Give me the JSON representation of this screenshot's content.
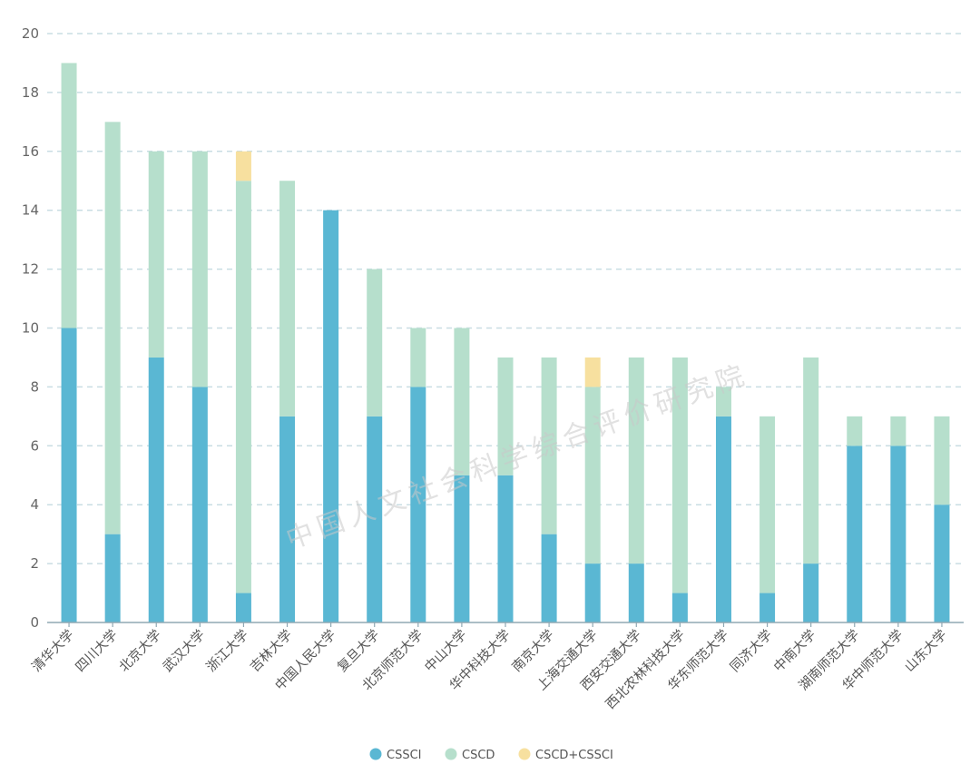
{
  "chart_data": {
    "type": "bar",
    "stacked": true,
    "categories": [
      "清华大学",
      "四川大学",
      "北京大学",
      "武汉大学",
      "浙江大学",
      "吉林大学",
      "中国人民大学",
      "复旦大学",
      "北京师范大学",
      "中山大学",
      "华中科技大学",
      "南京大学",
      "上海交通大学",
      "西安交通大学",
      "西北农林科技大学",
      "华东师范大学",
      "同济大学",
      "中南大学",
      "湖南师范大学",
      "华中师范大学",
      "山东大学"
    ],
    "series": [
      {
        "name": "CSSCI",
        "color": "#5ab7d3",
        "values": [
          10,
          3,
          9,
          8,
          1,
          7,
          14,
          7,
          8,
          5,
          5,
          3,
          2,
          2,
          1,
          7,
          1,
          2,
          6,
          6,
          4
        ]
      },
      {
        "name": "CSCD",
        "color": "#b6dfcc",
        "values": [
          9,
          14,
          7,
          8,
          14,
          8,
          0,
          5,
          2,
          5,
          4,
          6,
          6,
          7,
          8,
          1,
          6,
          7,
          1,
          1,
          3
        ]
      },
      {
        "name": "CSCD+CSSCI",
        "color": "#f7e09f",
        "values": [
          0,
          0,
          0,
          0,
          1,
          0,
          0,
          0,
          0,
          0,
          0,
          0,
          1,
          0,
          0,
          0,
          0,
          0,
          0,
          0,
          0
        ]
      }
    ],
    "ylim": [
      0,
      20
    ],
    "yticks": [
      0,
      2,
      4,
      6,
      8,
      10,
      12,
      14,
      16,
      18,
      20
    ],
    "grid": true,
    "legend": "bottom-center",
    "title": "",
    "xlabel": "",
    "ylabel": ""
  },
  "watermark": "中国人文社会科学综合评价研究院",
  "colors": {
    "grid": "#c9dde3",
    "axis": "#8fa8b3"
  }
}
